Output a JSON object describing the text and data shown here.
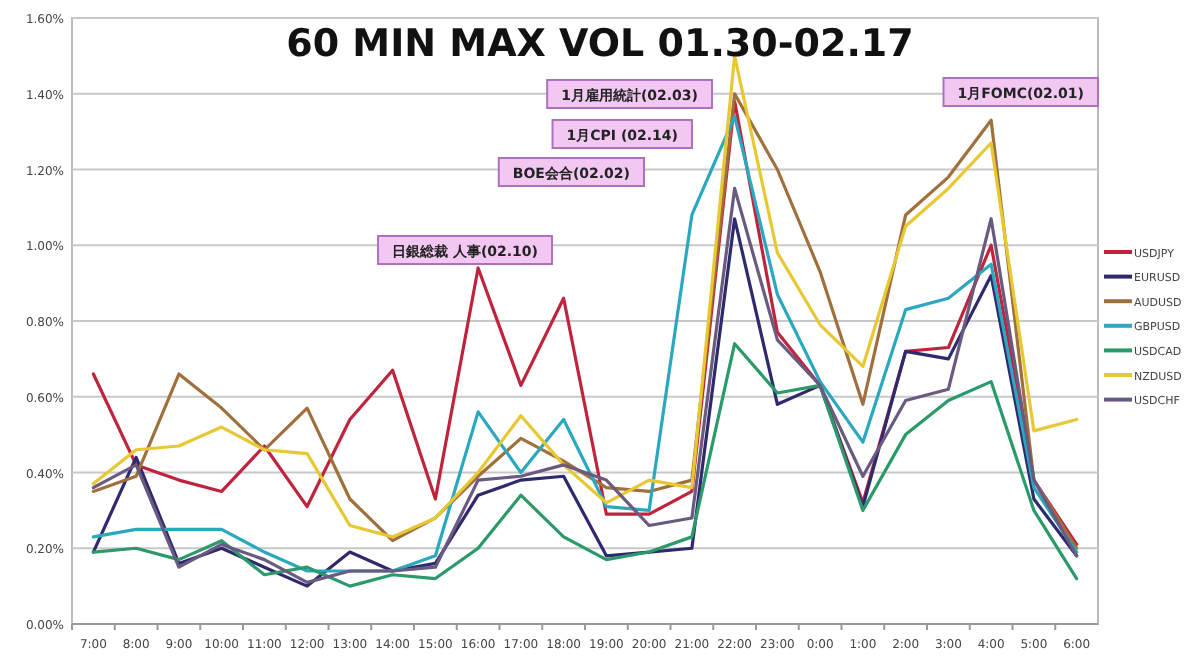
{
  "chart_data": {
    "type": "line",
    "title": "60 MIN MAX VOL  01.30-02.17",
    "categories": [
      "7:00",
      "8:00",
      "9:00",
      "10:00",
      "11:00",
      "12:00",
      "13:00",
      "14:00",
      "15:00",
      "16:00",
      "17:00",
      "18:00",
      "19:00",
      "20:00",
      "21:00",
      "22:00",
      "23:00",
      "0:00",
      "1:00",
      "2:00",
      "3:00",
      "4:00",
      "5:00",
      "6:00"
    ],
    "series": [
      {
        "name": "USDJPY",
        "color": "#c0243c",
        "values": [
          0.66,
          0.42,
          0.38,
          0.35,
          0.47,
          0.31,
          0.54,
          0.67,
          0.33,
          0.94,
          0.63,
          0.86,
          0.29,
          0.29,
          0.35,
          1.38,
          0.77,
          0.63,
          0.32,
          0.72,
          0.73,
          1.0,
          0.38,
          0.21
        ]
      },
      {
        "name": "EURUSD",
        "color": "#2e2a6e",
        "values": [
          0.19,
          0.44,
          0.16,
          0.2,
          0.15,
          0.1,
          0.19,
          0.14,
          0.16,
          0.34,
          0.38,
          0.39,
          0.18,
          0.19,
          0.2,
          1.07,
          0.58,
          0.63,
          0.31,
          0.72,
          0.7,
          0.92,
          0.33,
          0.18
        ]
      },
      {
        "name": "AUDUSD",
        "color": "#a0703c",
        "values": [
          0.35,
          0.39,
          0.66,
          0.57,
          0.46,
          0.57,
          0.33,
          0.22,
          0.28,
          0.39,
          0.49,
          0.43,
          0.36,
          0.35,
          0.38,
          1.4,
          1.2,
          0.93,
          0.58,
          1.08,
          1.18,
          1.33,
          0.38,
          0.2
        ]
      },
      {
        "name": "GBPUSD",
        "color": "#2aa8c0",
        "values": [
          0.23,
          0.25,
          0.25,
          0.25,
          0.19,
          0.14,
          0.14,
          0.14,
          0.18,
          0.56,
          0.4,
          0.54,
          0.31,
          0.3,
          1.08,
          1.34,
          0.87,
          0.64,
          0.48,
          0.83,
          0.86,
          0.95,
          0.36,
          0.19
        ]
      },
      {
        "name": "USDCAD",
        "color": "#2a9a6a",
        "values": [
          0.19,
          0.2,
          0.17,
          0.22,
          0.13,
          0.15,
          0.1,
          0.13,
          0.12,
          0.2,
          0.34,
          0.23,
          0.17,
          0.19,
          0.23,
          0.74,
          0.61,
          0.63,
          0.3,
          0.5,
          0.59,
          0.64,
          0.3,
          0.12
        ]
      },
      {
        "name": "NZDUSD",
        "color": "#e8c832",
        "values": [
          0.37,
          0.46,
          0.47,
          0.52,
          0.46,
          0.45,
          0.26,
          0.23,
          0.28,
          0.4,
          0.55,
          0.42,
          0.32,
          0.38,
          0.36,
          1.5,
          0.98,
          0.79,
          0.68,
          1.05,
          1.15,
          1.27,
          0.51,
          0.54
        ]
      },
      {
        "name": "USDCHF",
        "color": "#6a5a80",
        "values": [
          0.36,
          0.42,
          0.15,
          0.21,
          0.17,
          0.11,
          0.14,
          0.14,
          0.15,
          0.38,
          0.39,
          0.42,
          0.38,
          0.26,
          0.28,
          1.15,
          0.75,
          0.63,
          0.39,
          0.59,
          0.62,
          1.07,
          0.38,
          0.18
        ]
      }
    ],
    "ylim": [
      0,
      1.6
    ],
    "yticks": [
      {
        "value": 0,
        "label": "0.00%"
      },
      {
        "value": 0.2,
        "label": "0.20%"
      },
      {
        "value": 0.4,
        "label": "0.40%"
      },
      {
        "value": 0.6,
        "label": "0.60%"
      },
      {
        "value": 0.8,
        "label": "0.80%"
      },
      {
        "value": 1.0,
        "label": "1.00%"
      },
      {
        "value": 1.2,
        "label": "1.20%"
      },
      {
        "value": 1.4,
        "label": "1.40%"
      },
      {
        "value": 1.6,
        "label": "1.60%"
      }
    ],
    "annotations": [
      "1月雇用統計(02.03)",
      "1月CPI (02.14)",
      "BOE会合(02.02)",
      "日銀総裁 人事(02.10)",
      "1月FOMC(02.01)"
    ],
    "grid": "y",
    "legend": "right",
    "marker": "none",
    "line_style": "solid"
  }
}
